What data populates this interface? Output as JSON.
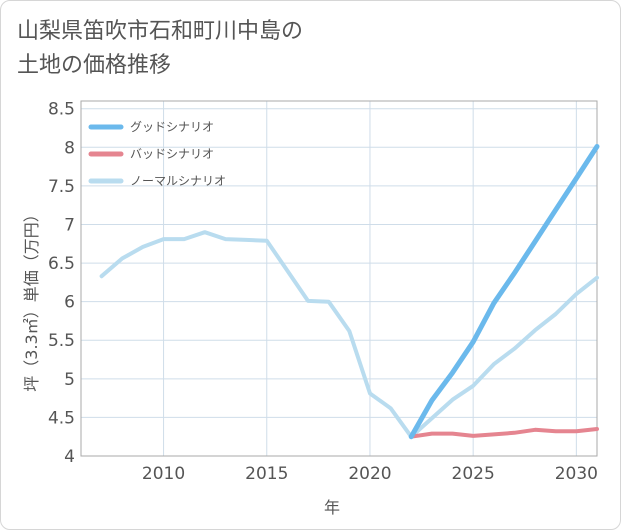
{
  "chart_data": {
    "type": "line",
    "title": "山梨県笛吹市石和町川中島の\n土地の価格推移",
    "xlabel": "年",
    "ylabel": "坪（3.3㎡）単価（万円）",
    "xlim": [
      2006,
      2031
    ],
    "ylim": [
      4,
      8.6
    ],
    "x_ticks": [
      "2010",
      "2015",
      "2020",
      "2025",
      "2030"
    ],
    "y_ticks": [
      "4",
      "4.5",
      "5",
      "5.5",
      "6",
      "6.5",
      "7",
      "7.5",
      "8",
      "8.5"
    ],
    "grid": true,
    "legend_position": "top-left",
    "series": [
      {
        "name": "グッドシナリオ",
        "color": "#6bb9ec",
        "x": [
          2022,
          2023,
          2024,
          2025,
          2026,
          2027,
          2028,
          2029,
          2030,
          2031
        ],
        "values": [
          4.25,
          4.72,
          5.08,
          5.48,
          5.98,
          6.37,
          6.78,
          7.19,
          7.6,
          8.01
        ]
      },
      {
        "name": "バッドシナリオ",
        "color": "#e58590",
        "x": [
          2022,
          2023,
          2024,
          2025,
          2026,
          2027,
          2028,
          2029,
          2030,
          2031
        ],
        "values": [
          4.25,
          4.29,
          4.29,
          4.26,
          4.28,
          4.3,
          4.34,
          4.32,
          4.32,
          4.35
        ]
      },
      {
        "name": "ノーマルシナリオ",
        "color": "#b9dcef",
        "x": [
          2007,
          2008,
          2009,
          2010,
          2011,
          2012,
          2013,
          2014,
          2015,
          2016,
          2017,
          2018,
          2019,
          2020,
          2021,
          2022,
          2023,
          2024,
          2025,
          2026,
          2027,
          2028,
          2029,
          2030,
          2031
        ],
        "values": [
          6.33,
          6.56,
          6.71,
          6.81,
          6.81,
          6.9,
          6.81,
          6.8,
          6.79,
          6.4,
          6.01,
          6.0,
          5.62,
          4.81,
          4.62,
          4.25,
          4.49,
          4.73,
          4.91,
          5.19,
          5.39,
          5.63,
          5.84,
          6.1,
          6.31
        ]
      }
    ]
  }
}
